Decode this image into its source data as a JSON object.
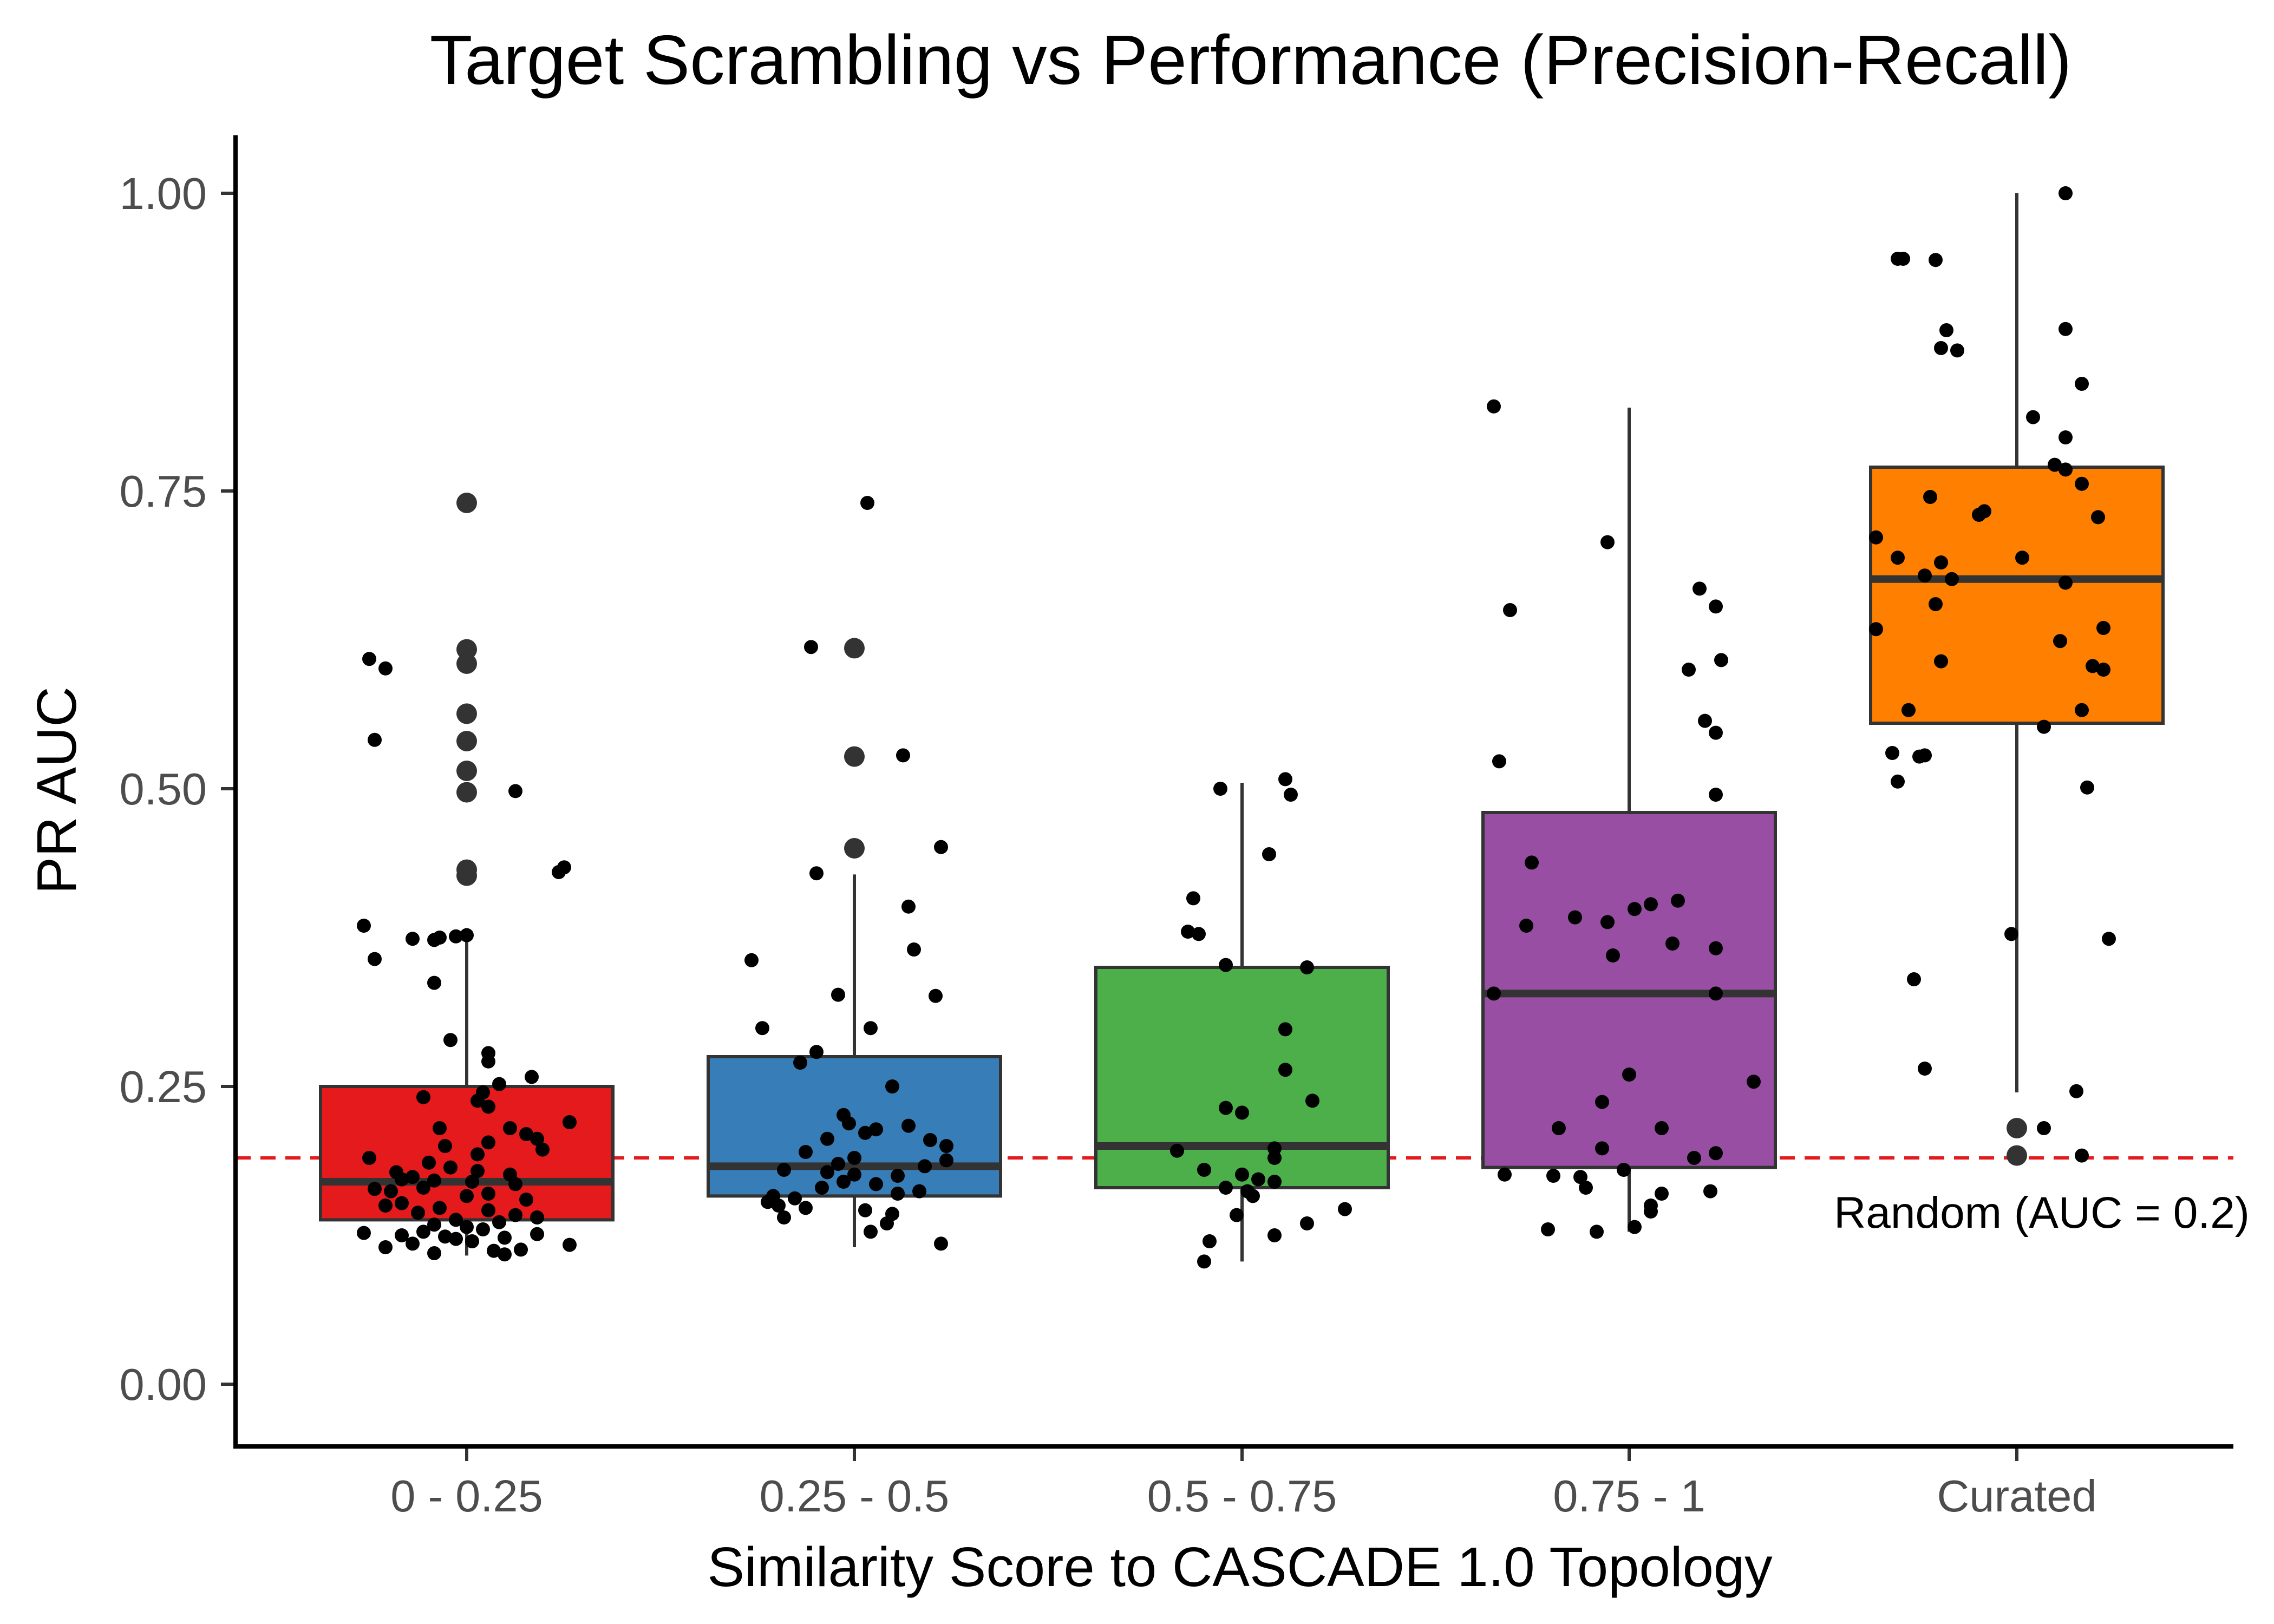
{
  "chart_data": {
    "type": "box",
    "title": "Target Scrambling vs Performance (Precision-Recall)",
    "xlabel": "Similarity Score to CASCADE 1.0 Topology",
    "ylabel": "PR AUC",
    "ylim": [
      -0.05,
      1.05
    ],
    "yticks": [
      "0.00",
      "0.25",
      "0.50",
      "0.75",
      "1.00"
    ],
    "ytick_values": [
      0,
      0.25,
      0.5,
      0.75,
      1.0
    ],
    "categories": [
      "0 - 0.25",
      "0.25 - 0.5",
      "0.5 - 0.75",
      "0.75 - 1",
      "Curated"
    ],
    "colors": [
      "#e41a1c",
      "#377eb8",
      "#4daf4a",
      "#984ea3",
      "#ff7f00"
    ],
    "boxes": [
      {
        "q1": 0.138,
        "median": 0.17,
        "q3": 0.25,
        "whisker_low": 0.108,
        "whisker_high": 0.383
      },
      {
        "q1": 0.158,
        "median": 0.183,
        "q3": 0.275,
        "whisker_low": 0.115,
        "whisker_high": 0.428
      },
      {
        "q1": 0.165,
        "median": 0.2,
        "q3": 0.35,
        "whisker_low": 0.103,
        "whisker_high": 0.505
      },
      {
        "q1": 0.182,
        "median": 0.328,
        "q3": 0.48,
        "whisker_low": 0.128,
        "whisker_high": 0.82
      },
      {
        "q1": 0.555,
        "median": 0.676,
        "q3": 0.77,
        "whisker_low": 0.245,
        "whisker_high": 1.0
      }
    ],
    "outliers": [
      [
        0.74,
        0.617,
        0.605,
        0.563,
        0.54,
        0.515,
        0.497,
        0.432,
        0.427
      ],
      [
        0.618,
        0.527,
        0.45
      ],
      [],
      [],
      [
        0.215,
        0.192
      ]
    ],
    "points": [
      [
        [
          0.74,
          0.74
        ],
        [
          0.609,
          -0.18
        ],
        [
          0.601,
          -0.15
        ],
        [
          0.541,
          -0.17
        ],
        [
          0.498,
          0.09
        ],
        [
          0.43,
          0.17
        ],
        [
          0.434,
          0.18
        ],
        [
          0.385,
          -0.19
        ],
        [
          0.374,
          -0.1
        ],
        [
          0.375,
          -0.05
        ],
        [
          0.376,
          -0.02
        ],
        [
          0.373,
          -0.06
        ],
        [
          0.377,
          0.0
        ],
        [
          0.357,
          -0.17
        ],
        [
          0.337,
          -0.06
        ],
        [
          0.289,
          -0.03
        ],
        [
          0.278,
          0.04
        ],
        [
          0.271,
          0.04
        ],
        [
          0.258,
          0.12
        ],
        [
          0.252,
          0.06
        ],
        [
          0.245,
          0.03
        ],
        [
          0.241,
          -0.08
        ],
        [
          0.238,
          0.02
        ],
        [
          0.233,
          0.04
        ],
        [
          0.22,
          0.19
        ],
        [
          0.215,
          -0.05
        ],
        [
          0.215,
          0.08
        ],
        [
          0.21,
          0.11
        ],
        [
          0.206,
          0.13
        ],
        [
          0.203,
          0.04
        ],
        [
          0.2,
          -0.04
        ],
        [
          0.197,
          0.14
        ],
        [
          0.193,
          0.02
        ],
        [
          0.19,
          -0.18
        ],
        [
          0.186,
          -0.07
        ],
        [
          0.182,
          -0.03
        ],
        [
          0.179,
          0.02
        ],
        [
          0.178,
          -0.13
        ],
        [
          0.176,
          0.08
        ],
        [
          0.174,
          -0.1
        ],
        [
          0.172,
          -0.12
        ],
        [
          0.171,
          -0.06
        ],
        [
          0.17,
          0.01
        ],
        [
          0.168,
          0.09
        ],
        [
          0.165,
          -0.08
        ],
        [
          0.164,
          -0.17
        ],
        [
          0.162,
          -0.14
        ],
        [
          0.16,
          0.04
        ],
        [
          0.158,
          0.0
        ],
        [
          0.155,
          0.11
        ],
        [
          0.152,
          -0.12
        ],
        [
          0.15,
          -0.15
        ],
        [
          0.148,
          -0.05
        ],
        [
          0.146,
          0.04
        ],
        [
          0.144,
          -0.09
        ],
        [
          0.142,
          0.09
        ],
        [
          0.14,
          0.13
        ],
        [
          0.138,
          -0.02
        ],
        [
          0.136,
          0.06
        ],
        [
          0.134,
          -0.06
        ],
        [
          0.132,
          0.0
        ],
        [
          0.13,
          0.03
        ],
        [
          0.128,
          -0.08
        ],
        [
          0.127,
          -0.19
        ],
        [
          0.126,
          0.13
        ],
        [
          0.125,
          -0.12
        ],
        [
          0.124,
          -0.04
        ],
        [
          0.123,
          0.07
        ],
        [
          0.122,
          -0.02
        ],
        [
          0.12,
          0.01
        ],
        [
          0.118,
          -0.1
        ],
        [
          0.117,
          0.19
        ],
        [
          0.115,
          -0.15
        ],
        [
          0.113,
          0.1
        ],
        [
          0.112,
          0.05
        ],
        [
          0.11,
          -0.06
        ],
        [
          0.109,
          0.07
        ]
      ],
      [
        [
          0.619,
          -0.08
        ],
        [
          0.528,
          0.09
        ],
        [
          0.451,
          0.16
        ],
        [
          0.429,
          -0.07
        ],
        [
          0.401,
          0.1
        ],
        [
          0.365,
          0.11
        ],
        [
          0.356,
          -0.19
        ],
        [
          0.326,
          0.15
        ],
        [
          0.327,
          -0.03
        ],
        [
          0.299,
          0.03
        ],
        [
          0.299,
          -0.17
        ],
        [
          0.279,
          -0.07
        ],
        [
          0.27,
          -0.1
        ],
        [
          0.25,
          0.07
        ],
        [
          0.226,
          -0.02
        ],
        [
          0.219,
          -0.01
        ],
        [
          0.217,
          0.1
        ],
        [
          0.214,
          0.04
        ],
        [
          0.211,
          0.02
        ],
        [
          0.206,
          -0.05
        ],
        [
          0.205,
          0.14
        ],
        [
          0.2,
          0.17
        ],
        [
          0.195,
          -0.09
        ],
        [
          0.19,
          0.0
        ],
        [
          0.188,
          0.17
        ],
        [
          0.185,
          -0.03
        ],
        [
          0.183,
          0.13
        ],
        [
          0.18,
          -0.13
        ],
        [
          0.178,
          -0.05
        ],
        [
          0.176,
          0.0
        ],
        [
          0.175,
          0.08
        ],
        [
          0.17,
          -0.02
        ],
        [
          0.168,
          0.04
        ],
        [
          0.165,
          -0.06
        ],
        [
          0.162,
          0.12
        ],
        [
          0.16,
          0.08
        ],
        [
          0.158,
          -0.15
        ],
        [
          0.156,
          -0.11
        ],
        [
          0.153,
          -0.16
        ],
        [
          0.15,
          -0.14
        ],
        [
          0.148,
          -0.09
        ],
        [
          0.146,
          0.02
        ],
        [
          0.143,
          0.07
        ],
        [
          0.14,
          -0.13
        ],
        [
          0.135,
          0.06
        ],
        [
          0.128,
          0.03
        ],
        [
          0.118,
          0.16
        ]
      ],
      [
        [
          0.508,
          0.08
        ],
        [
          0.5,
          -0.04
        ],
        [
          0.495,
          0.09
        ],
        [
          0.445,
          0.05
        ],
        [
          0.408,
          -0.09
        ],
        [
          0.38,
          -0.1
        ],
        [
          0.378,
          -0.08
        ],
        [
          0.352,
          -0.03
        ],
        [
          0.35,
          0.12
        ],
        [
          0.298,
          0.08
        ],
        [
          0.264,
          0.08
        ],
        [
          0.238,
          0.13
        ],
        [
          0.232,
          -0.03
        ],
        [
          0.228,
          0.0
        ],
        [
          0.198,
          0.06
        ],
        [
          0.196,
          -0.12
        ],
        [
          0.19,
          0.06
        ],
        [
          0.18,
          -0.07
        ],
        [
          0.176,
          0.0
        ],
        [
          0.172,
          0.03
        ],
        [
          0.17,
          0.06
        ],
        [
          0.165,
          -0.03
        ],
        [
          0.162,
          0.01
        ],
        [
          0.158,
          0.02
        ],
        [
          0.147,
          0.19
        ],
        [
          0.142,
          -0.01
        ],
        [
          0.135,
          0.12
        ],
        [
          0.125,
          0.06
        ],
        [
          0.12,
          -0.06
        ],
        [
          0.103,
          -0.07
        ]
      ],
      [
        [
          0.821,
          -0.25
        ],
        [
          0.707,
          -0.04
        ],
        [
          0.668,
          0.13
        ],
        [
          0.65,
          -0.22
        ],
        [
          0.653,
          0.16
        ],
        [
          0.608,
          0.17
        ],
        [
          0.6,
          0.11
        ],
        [
          0.557,
          0.14
        ],
        [
          0.547,
          0.16
        ],
        [
          0.523,
          -0.24
        ],
        [
          0.495,
          0.16
        ],
        [
          0.438,
          -0.18
        ],
        [
          0.406,
          0.09
        ],
        [
          0.403,
          0.04
        ],
        [
          0.399,
          0.01
        ],
        [
          0.392,
          -0.1
        ],
        [
          0.388,
          -0.04
        ],
        [
          0.385,
          -0.19
        ],
        [
          0.37,
          0.08
        ],
        [
          0.366,
          0.16
        ],
        [
          0.36,
          -0.03
        ],
        [
          0.328,
          0.16
        ],
        [
          0.328,
          -0.25
        ],
        [
          0.26,
          0.0
        ],
        [
          0.254,
          0.23
        ],
        [
          0.237,
          -0.05
        ],
        [
          0.215,
          -0.13
        ],
        [
          0.215,
          0.06
        ],
        [
          0.198,
          -0.05
        ],
        [
          0.194,
          0.16
        ],
        [
          0.19,
          0.12
        ],
        [
          0.18,
          -0.01
        ],
        [
          0.176,
          -0.23
        ],
        [
          0.175,
          -0.14
        ],
        [
          0.174,
          -0.09
        ],
        [
          0.165,
          -0.08
        ],
        [
          0.162,
          0.15
        ],
        [
          0.16,
          0.06
        ],
        [
          0.15,
          0.04
        ],
        [
          0.145,
          0.04
        ],
        [
          0.132,
          0.01
        ],
        [
          0.13,
          -0.15
        ],
        [
          0.128,
          -0.06
        ]
      ],
      [
        [
          1.0,
          0.09
        ],
        [
          0.945,
          -0.22
        ],
        [
          0.945,
          -0.21
        ],
        [
          0.944,
          -0.15
        ],
        [
          0.886,
          0.09
        ],
        [
          0.885,
          -0.13
        ],
        [
          0.87,
          -0.14
        ],
        [
          0.868,
          -0.11
        ],
        [
          0.84,
          0.12
        ],
        [
          0.812,
          0.03
        ],
        [
          0.795,
          0.09
        ],
        [
          0.772,
          0.07
        ],
        [
          0.768,
          0.09
        ],
        [
          0.756,
          0.12
        ],
        [
          0.745,
          -0.16
        ],
        [
          0.733,
          -0.06
        ],
        [
          0.73,
          -0.07
        ],
        [
          0.728,
          0.15
        ],
        [
          0.711,
          -0.26
        ],
        [
          0.694,
          -0.22
        ],
        [
          0.694,
          0.01
        ],
        [
          0.69,
          -0.14
        ],
        [
          0.679,
          -0.17
        ],
        [
          0.676,
          -0.12
        ],
        [
          0.673,
          0.09
        ],
        [
          0.655,
          -0.15
        ],
        [
          0.635,
          0.16
        ],
        [
          0.634,
          -0.26
        ],
        [
          0.624,
          0.08
        ],
        [
          0.607,
          -0.14
        ],
        [
          0.603,
          0.14
        ],
        [
          0.6,
          0.16
        ],
        [
          0.566,
          0.12
        ],
        [
          0.566,
          -0.2
        ],
        [
          0.552,
          0.05
        ],
        [
          0.53,
          -0.23
        ],
        [
          0.528,
          -0.17
        ],
        [
          0.527,
          -0.18
        ],
        [
          0.501,
          0.13
        ],
        [
          0.506,
          -0.22
        ],
        [
          0.378,
          -0.01
        ],
        [
          0.374,
          0.17
        ],
        [
          0.34,
          -0.19
        ],
        [
          0.265,
          -0.17
        ],
        [
          0.246,
          0.11
        ],
        [
          0.215,
          0.05
        ],
        [
          0.192,
          0.12
        ]
      ]
    ],
    "reference_line": {
      "y": 0.19,
      "label": "Random (AUC = 0.2)",
      "color": "#e41a1c"
    }
  }
}
